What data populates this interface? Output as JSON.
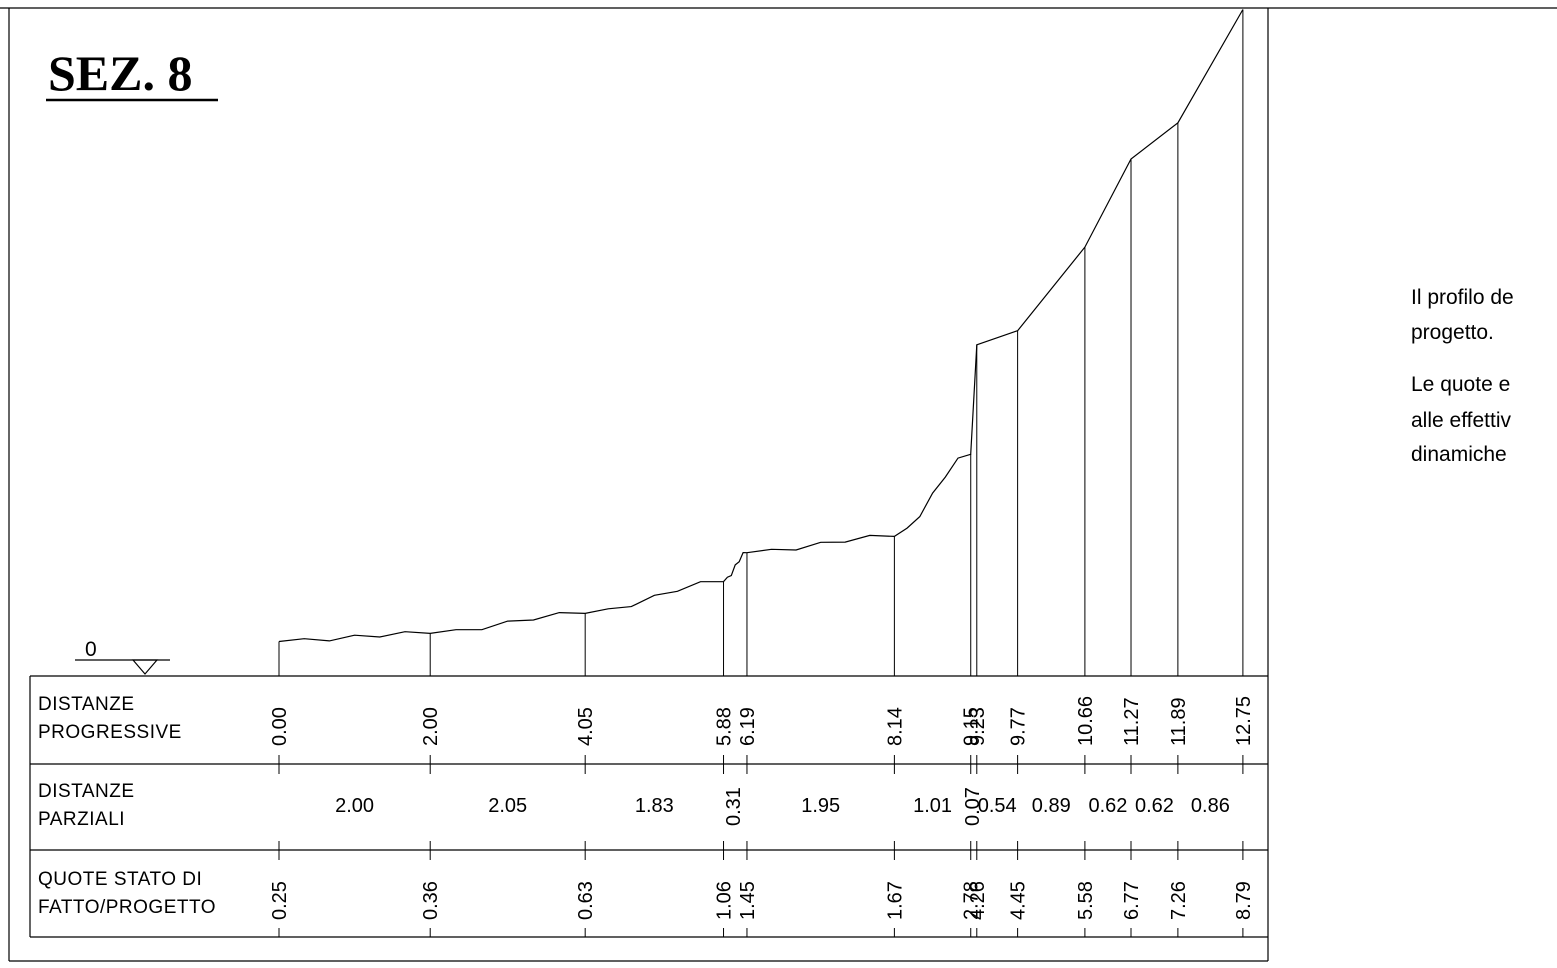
{
  "title": "SEZ. 8",
  "reference_level_label": "0",
  "table": {
    "row_labels": [
      [
        "DISTANZE",
        "PROGRESSIVE"
      ],
      [
        "DISTANZE",
        "PARZIALI"
      ],
      [
        "QUOTE STATO DI",
        "FATTO/PROGETTO"
      ]
    ],
    "progressive": [
      "0.00",
      "2.00",
      "4.05",
      "5.88",
      "6.19",
      "8.14",
      "9.15",
      "9.23",
      "9.77",
      "10.66",
      "11.27",
      "11.89",
      "12.75"
    ],
    "partial": [
      "2.00",
      "2.05",
      "1.83",
      "0.31",
      "1.95",
      "1.01",
      "0.07",
      "0.54",
      "0.89",
      "0.62",
      "0.62",
      "0.86"
    ],
    "elevations": [
      "0.25",
      "0.36",
      "0.63",
      "1.06",
      "1.45",
      "1.67",
      "2.78",
      "4.26",
      "4.45",
      "5.58",
      "6.77",
      "7.26",
      "8.79"
    ]
  },
  "profile": {
    "distances": [
      0.0,
      2.0,
      4.05,
      5.88,
      6.19,
      8.14,
      9.15,
      9.23,
      9.77,
      10.66,
      11.27,
      11.89,
      12.75
    ],
    "elevations": [
      0.25,
      0.36,
      0.63,
      1.06,
      1.45,
      1.67,
      2.78,
      4.26,
      4.45,
      5.58,
      6.77,
      7.26,
      8.79
    ]
  },
  "side_notes": [
    "Il profilo de",
    "progetto.",
    "Le quote e",
    "alle effettiv",
    "dinamiche"
  ]
}
